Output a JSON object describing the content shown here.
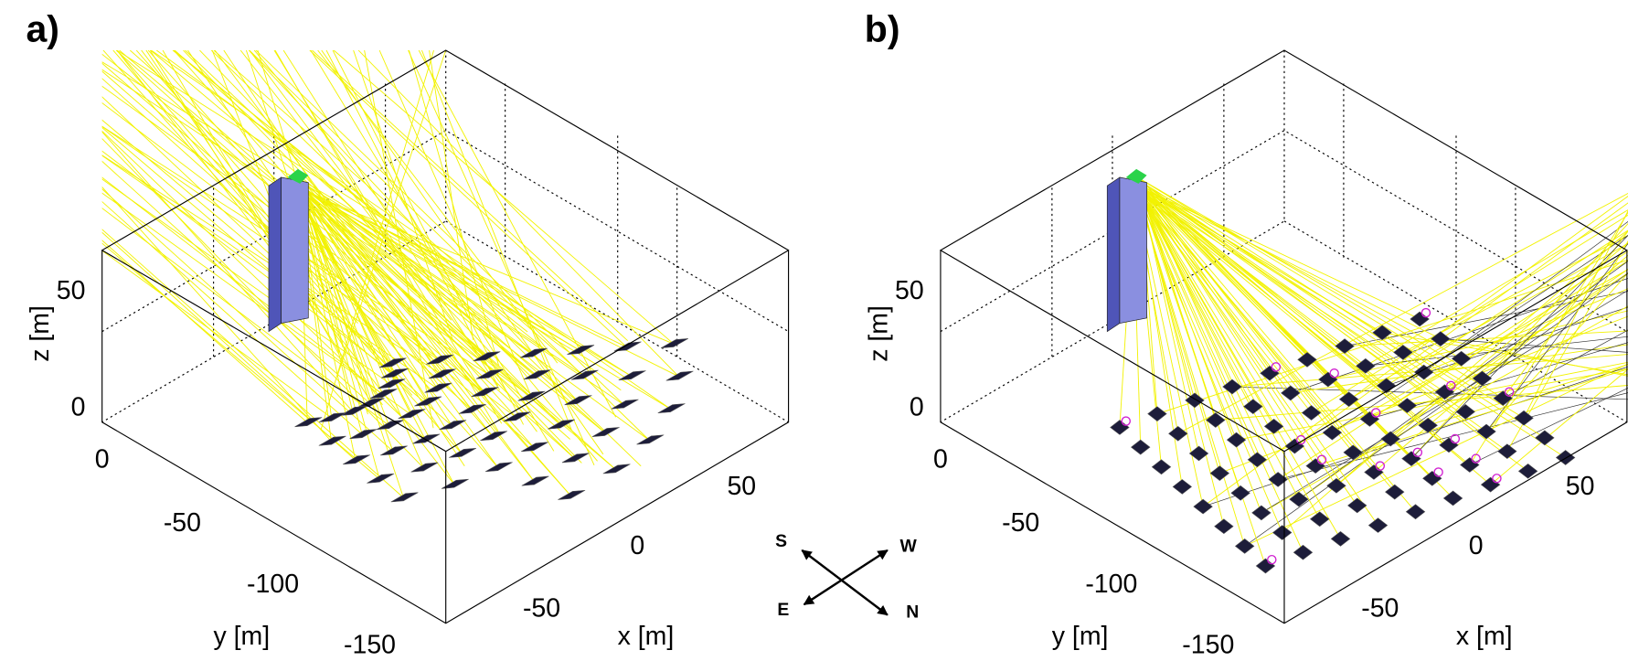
{
  "panels": [
    {
      "label": "a)",
      "z_axis": {
        "label": "z [m]",
        "ticks": [
          0,
          50
        ]
      },
      "y_axis": {
        "label": "y [m]",
        "ticks": [
          0,
          -50,
          -100,
          -150
        ]
      },
      "x_axis": {
        "label": "x [m]",
        "ticks": [
          -50,
          0,
          50
        ]
      }
    },
    {
      "label": "b)",
      "z_axis": {
        "label": "z [m]",
        "ticks": [
          0,
          50
        ]
      },
      "y_axis": {
        "label": "y [m]",
        "ticks": [
          0,
          -50,
          -100,
          -150
        ]
      },
      "x_axis": {
        "label": "x [m]",
        "ticks": [
          -50,
          0,
          50
        ]
      }
    }
  ],
  "compass": [
    "S",
    "W",
    "E",
    "N"
  ]
}
